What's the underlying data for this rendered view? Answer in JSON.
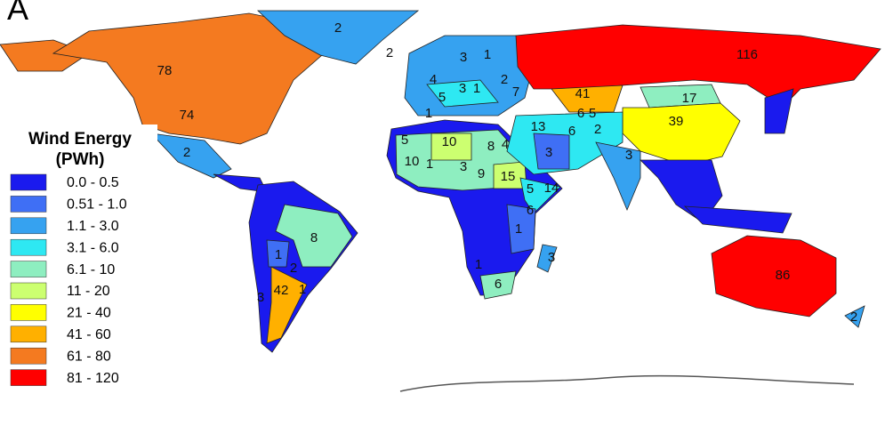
{
  "panel_label": "A",
  "legend": {
    "title": [
      "Wind Energy",
      "(PWh)"
    ],
    "items": [
      {
        "label": "0.0 - 0.5",
        "color": "#1a1aee"
      },
      {
        "label": "0.51 - 1.0",
        "color": "#3f6ff5"
      },
      {
        "label": "1.1 - 3.0",
        "color": "#36a2f0"
      },
      {
        "label": "3.1 - 6.0",
        "color": "#2ee8f2"
      },
      {
        "label": "6.1 - 10",
        "color": "#8eeec0"
      },
      {
        "label": "11 - 20",
        "color": "#ccff70"
      },
      {
        "label": "21 - 40",
        "color": "#ffff00"
      },
      {
        "label": "41 - 60",
        "color": "#ffb000"
      },
      {
        "label": "61 - 80",
        "color": "#f47a20"
      },
      {
        "label": "81 - 120",
        "color": "#ff0000"
      }
    ]
  },
  "labels": [
    "2",
    "2",
    "78",
    "74",
    "2",
    "3",
    "1",
    "4",
    "5",
    "3",
    "1",
    "2",
    "7",
    "116",
    "41",
    "17",
    "39",
    "6",
    "5",
    "1",
    "13",
    "6",
    "2",
    "5",
    "10",
    "8",
    "4",
    "3",
    "3",
    "10",
    "1",
    "3",
    "9",
    "15",
    "5",
    "14",
    "6",
    "1",
    "8",
    "1",
    "2",
    "3",
    "1",
    "6",
    "42",
    "1",
    "3",
    "86",
    "2"
  ]
}
